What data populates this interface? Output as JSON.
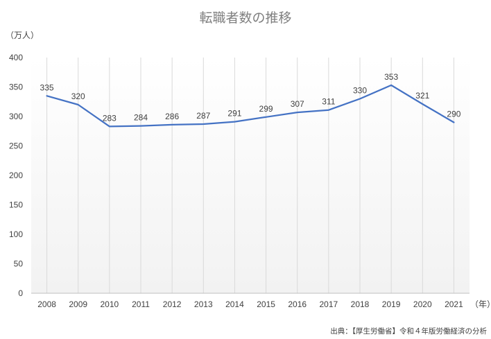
{
  "chart_data": {
    "type": "line",
    "title": "転職者数の推移",
    "y_unit_label": "（万人）",
    "x_unit_label": "（年）",
    "categories": [
      "2008",
      "2009",
      "2010",
      "2011",
      "2012",
      "2013",
      "2014",
      "2015",
      "2016",
      "2017",
      "2018",
      "2019",
      "2020",
      "2021"
    ],
    "series": [
      {
        "values": [
          335,
          320,
          283,
          284,
          286,
          287,
          291,
          299,
          307,
          311,
          330,
          353,
          321,
          290
        ]
      }
    ],
    "ylim": [
      0,
      400
    ],
    "yticks": [
      0,
      50,
      100,
      150,
      200,
      250,
      300,
      350,
      400
    ],
    "grid": "vertical",
    "data_labels": true,
    "line_color": "#4472c4"
  },
  "source_note": "出典：【厚生労働省】令和４年版労働経済の分析"
}
